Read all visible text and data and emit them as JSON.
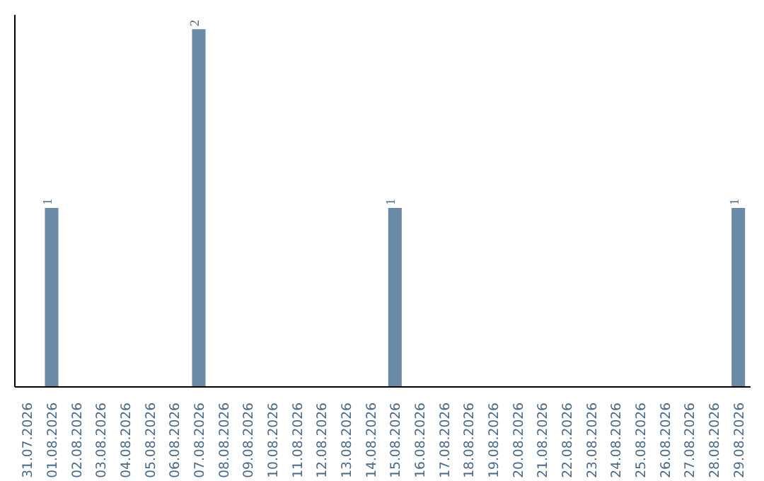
{
  "chart_data": {
    "type": "bar",
    "categories": [
      "31.07.2026",
      "01.08.2026",
      "02.08.2026",
      "03.08.2026",
      "04.08.2026",
      "05.08.2026",
      "06.08.2026",
      "07.08.2026",
      "08.08.2026",
      "09.08.2026",
      "10.08.2026",
      "11.08.2026",
      "12.08.2026",
      "13.08.2026",
      "14.08.2026",
      "15.08.2026",
      "16.08.2026",
      "17.08.2026",
      "18.08.2026",
      "19.08.2026",
      "20.08.2026",
      "21.08.2026",
      "22.08.2026",
      "23.08.2026",
      "24.08.2026",
      "25.08.2026",
      "26.08.2026",
      "27.08.2026",
      "28.08.2026",
      "29.08.2026"
    ],
    "values": [
      0,
      1,
      0,
      0,
      0,
      0,
      0,
      2,
      0,
      0,
      0,
      0,
      0,
      0,
      0,
      1,
      0,
      0,
      0,
      0,
      0,
      0,
      0,
      0,
      0,
      0,
      0,
      0,
      0,
      1
    ],
    "value_labels": [
      null,
      "1",
      null,
      null,
      null,
      null,
      null,
      "2",
      null,
      null,
      null,
      null,
      null,
      null,
      null,
      "1",
      null,
      null,
      null,
      null,
      null,
      null,
      null,
      null,
      null,
      null,
      null,
      null,
      null,
      "1"
    ],
    "color": "#6b8aa8",
    "ylim": [
      0,
      2.08
    ],
    "tick_labels": "x"
  }
}
